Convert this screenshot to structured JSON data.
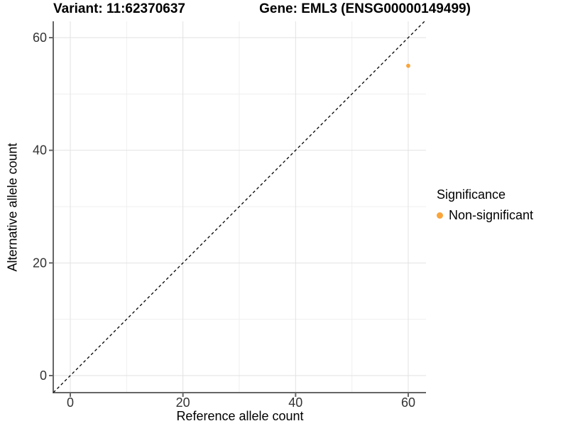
{
  "chart_data": {
    "type": "scatter",
    "titles": [
      "Variant: 11:62370637",
      "Gene: EML3 (ENSG00000149499)"
    ],
    "xlabel": "Reference allele count",
    "ylabel": "Alternative allele count",
    "x_ticks": [
      0,
      20,
      40,
      60
    ],
    "y_ticks": [
      0,
      20,
      40,
      60
    ],
    "minor_ticks": [
      10,
      30,
      50
    ],
    "xlim": [
      -3,
      63
    ],
    "ylim": [
      -3,
      63
    ],
    "grid": "major and minor, light gray on white",
    "series": [
      {
        "name": "Non-significant",
        "points": [
          {
            "x": 60,
            "y": 55
          }
        ]
      }
    ],
    "reference_line": {
      "kind": "identity y=x",
      "style": "dashed",
      "color": "#000000"
    },
    "legend": {
      "title": "Significance",
      "position": "right",
      "entries": [
        {
          "label": "Non-significant",
          "color": "#FAA43A"
        }
      ]
    },
    "colors": {
      "point": "#FAA43A",
      "grid_major": "#E2E2E2",
      "grid_minor": "#EFEFEF",
      "axis_line": "#666666",
      "tick_text": "#333333",
      "background": "#FFFFFF"
    }
  }
}
